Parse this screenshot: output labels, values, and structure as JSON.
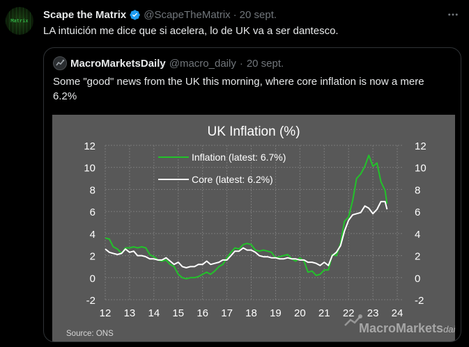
{
  "tweet": {
    "author_name": "Scape the Matrix",
    "author_handle": "@ScapeTheMatrix",
    "separator": "·",
    "date": "20 sept.",
    "text": "LA intuición me dice que si acelera, lo de UK va a ser dantesco.",
    "avatar_text": "Matrix",
    "more_icon": "more-dots-icon",
    "verified_icon": "verified-badge-icon",
    "verified_color": "#1d9bf0"
  },
  "quoted": {
    "author_name": "MacroMarketsDaily",
    "author_handle": "@macro_daily",
    "separator": "·",
    "date": "20 sept.",
    "text": "Some \"good\" news from the UK this morning, where core inflation is now a mere 6.2%"
  },
  "chart_data": {
    "type": "line",
    "title": "UK Inflation (%)",
    "source": "Source:  ONS",
    "watermark": "MacroMarkets",
    "watermark_suffix": "daily",
    "x_tick_labels": [
      "12",
      "13",
      "14",
      "15",
      "16",
      "17",
      "18",
      "19",
      "20",
      "21",
      "22",
      "23",
      "24"
    ],
    "x_ticks": [
      2012,
      2013,
      2014,
      2015,
      2016,
      2017,
      2018,
      2019,
      2020,
      2021,
      2022,
      2023,
      2024
    ],
    "xlim": [
      2012,
      2024.2
    ],
    "ylim": [
      -2,
      12
    ],
    "y_ticks": [
      -2,
      0,
      2,
      4,
      6,
      8,
      10,
      12
    ],
    "y_tick_labels": [
      "-2",
      "0",
      "2",
      "4",
      "6",
      "8",
      "10",
      "12"
    ],
    "grid": true,
    "legend_position": "top-left",
    "background": "#585858",
    "series": [
      {
        "name": "Inflation (latest: 6.7%)",
        "color": "#22c22a",
        "x": [
          2012.0,
          2012.17,
          2012.33,
          2012.5,
          2012.67,
          2012.83,
          2013.0,
          2013.17,
          2013.33,
          2013.5,
          2013.67,
          2013.83,
          2014.0,
          2014.17,
          2014.33,
          2014.5,
          2014.67,
          2014.83,
          2015.0,
          2015.17,
          2015.33,
          2015.5,
          2015.67,
          2015.83,
          2016.0,
          2016.17,
          2016.33,
          2016.5,
          2016.67,
          2016.83,
          2017.0,
          2017.17,
          2017.33,
          2017.5,
          2017.67,
          2017.83,
          2018.0,
          2018.17,
          2018.33,
          2018.5,
          2018.67,
          2018.83,
          2019.0,
          2019.17,
          2019.33,
          2019.5,
          2019.67,
          2019.83,
          2020.0,
          2020.17,
          2020.33,
          2020.5,
          2020.67,
          2020.83,
          2021.0,
          2021.17,
          2021.33,
          2021.5,
          2021.67,
          2021.83,
          2022.0,
          2022.17,
          2022.33,
          2022.5,
          2022.67,
          2022.83,
          2023.0,
          2023.17,
          2023.33,
          2023.5,
          2023.58
        ],
        "y": [
          3.6,
          3.5,
          2.8,
          2.6,
          2.2,
          2.7,
          2.7,
          2.8,
          2.7,
          2.8,
          2.7,
          2.1,
          1.9,
          1.6,
          1.5,
          1.6,
          1.2,
          1.0,
          0.3,
          0.0,
          -0.1,
          0.0,
          0.0,
          0.1,
          0.3,
          0.5,
          0.3,
          0.6,
          1.0,
          1.2,
          1.8,
          2.3,
          2.7,
          2.6,
          3.0,
          3.1,
          3.0,
          2.5,
          2.4,
          2.5,
          2.4,
          2.3,
          1.8,
          1.9,
          2.0,
          2.1,
          1.7,
          1.5,
          1.8,
          1.5,
          0.5,
          0.6,
          0.2,
          0.3,
          0.7,
          0.7,
          2.1,
          2.0,
          3.1,
          5.1,
          5.5,
          7.0,
          9.0,
          9.4,
          10.1,
          11.1,
          10.1,
          10.4,
          8.7,
          7.9,
          6.7
        ]
      },
      {
        "name": "Core (latest: 6.2%)",
        "color": "#ffffff",
        "x": [
          2012.0,
          2012.17,
          2012.33,
          2012.5,
          2012.67,
          2012.83,
          2013.0,
          2013.17,
          2013.33,
          2013.5,
          2013.67,
          2013.83,
          2014.0,
          2014.17,
          2014.33,
          2014.5,
          2014.67,
          2014.83,
          2015.0,
          2015.17,
          2015.33,
          2015.5,
          2015.67,
          2015.83,
          2016.0,
          2016.17,
          2016.33,
          2016.5,
          2016.67,
          2016.83,
          2017.0,
          2017.17,
          2017.33,
          2017.5,
          2017.67,
          2017.83,
          2018.0,
          2018.17,
          2018.33,
          2018.5,
          2018.67,
          2018.83,
          2019.0,
          2019.17,
          2019.33,
          2019.5,
          2019.67,
          2019.83,
          2020.0,
          2020.17,
          2020.33,
          2020.5,
          2020.67,
          2020.83,
          2021.0,
          2021.17,
          2021.33,
          2021.5,
          2021.67,
          2021.83,
          2022.0,
          2022.17,
          2022.33,
          2022.5,
          2022.67,
          2022.83,
          2023.0,
          2023.17,
          2023.33,
          2023.5,
          2023.58
        ],
        "y": [
          2.6,
          2.3,
          2.2,
          2.1,
          2.2,
          2.6,
          2.3,
          2.4,
          2.0,
          2.0,
          1.9,
          1.7,
          1.7,
          1.6,
          1.6,
          1.8,
          1.5,
          1.2,
          1.4,
          1.0,
          0.9,
          1.0,
          1.0,
          1.2,
          1.2,
          1.5,
          1.2,
          1.3,
          1.4,
          1.6,
          1.6,
          2.0,
          2.4,
          2.4,
          2.7,
          2.5,
          2.5,
          2.3,
          2.0,
          1.9,
          1.9,
          1.8,
          1.8,
          1.7,
          1.7,
          1.8,
          1.7,
          1.7,
          1.6,
          1.6,
          1.4,
          1.4,
          1.3,
          1.1,
          1.4,
          1.1,
          2.0,
          2.3,
          2.9,
          4.2,
          5.2,
          5.7,
          5.8,
          5.9,
          6.5,
          6.3,
          5.8,
          6.2,
          6.9,
          6.9,
          6.2
        ]
      }
    ]
  }
}
